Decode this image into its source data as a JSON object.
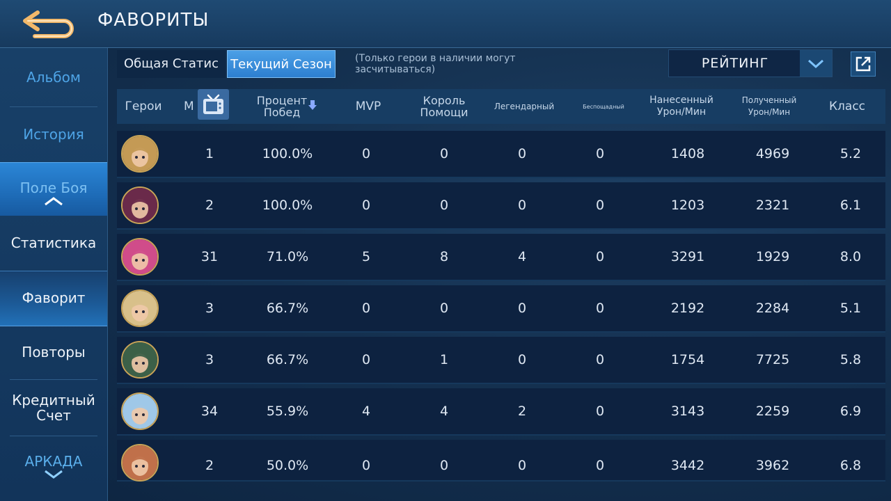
{
  "header": {
    "title": "ФАВОРИТЫ",
    "back_icon": "back-arrow-icon"
  },
  "sidebar": {
    "items": [
      {
        "label": "Альбом"
      },
      {
        "label": "История"
      },
      {
        "label": "Поле Боя"
      },
      {
        "label": "Статистика"
      },
      {
        "label": "Фаворит"
      },
      {
        "label": "Повторы"
      },
      {
        "label": "Кредитный Счет"
      },
      {
        "label": "АРКАДА"
      }
    ],
    "active": "Фаворит"
  },
  "controls": {
    "tab_general": "Общая Статис",
    "tab_season": "Текущий Сезон",
    "note": "(Только герои в наличии могут засчитываться)",
    "sort_value": "РЕЙТИНГ"
  },
  "table": {
    "headers": {
      "heroes": "Герои",
      "matches": "М",
      "win_rate": "Процент Побед",
      "mvp": "MVP",
      "king_assist": "Король Помощи",
      "legendary": "Легендарный",
      "savage": "Беспощадный",
      "dmg_dealt": "Нанесенный Урон/Мин",
      "dmg_taken": "Полученный Урон/Мин",
      "rating": "Класс"
    },
    "rows": [
      {
        "matches": "1",
        "win_rate": "100.0%",
        "mvp": "0",
        "king_assist": "0",
        "legendary": "0",
        "savage": "0",
        "dmg_dealt": "1408",
        "dmg_taken": "4969",
        "rating": "5.2",
        "avatar_color": "#c49a55"
      },
      {
        "matches": "2",
        "win_rate": "100.0%",
        "mvp": "0",
        "king_assist": "0",
        "legendary": "0",
        "savage": "0",
        "dmg_dealt": "1203",
        "dmg_taken": "2321",
        "rating": "6.1",
        "avatar_color": "#6a2a4a"
      },
      {
        "matches": "31",
        "win_rate": "71.0%",
        "mvp": "5",
        "king_assist": "8",
        "legendary": "4",
        "savage": "0",
        "dmg_dealt": "3291",
        "dmg_taken": "1929",
        "rating": "8.0",
        "avatar_color": "#d04c8a"
      },
      {
        "matches": "3",
        "win_rate": "66.7%",
        "mvp": "0",
        "king_assist": "0",
        "legendary": "0",
        "savage": "0",
        "dmg_dealt": "2192",
        "dmg_taken": "2284",
        "rating": "5.1",
        "avatar_color": "#d8c08a"
      },
      {
        "matches": "3",
        "win_rate": "66.7%",
        "mvp": "0",
        "king_assist": "1",
        "legendary": "0",
        "savage": "0",
        "dmg_dealt": "1754",
        "dmg_taken": "7725",
        "rating": "5.8",
        "avatar_color": "#3c6048"
      },
      {
        "matches": "34",
        "win_rate": "55.9%",
        "mvp": "4",
        "king_assist": "4",
        "legendary": "2",
        "savage": "0",
        "dmg_dealt": "3143",
        "dmg_taken": "2259",
        "rating": "6.9",
        "avatar_color": "#9fc8e8"
      },
      {
        "matches": "2",
        "win_rate": "50.0%",
        "mvp": "0",
        "king_assist": "0",
        "legendary": "0",
        "savage": "0",
        "dmg_dealt": "3442",
        "dmg_taken": "3962",
        "rating": "6.8",
        "avatar_color": "#c0704a"
      }
    ]
  },
  "colors": {
    "accent": "#2d7fd0",
    "active_tab": "#4b9fe6",
    "muted_text": "#4ea4e6"
  }
}
